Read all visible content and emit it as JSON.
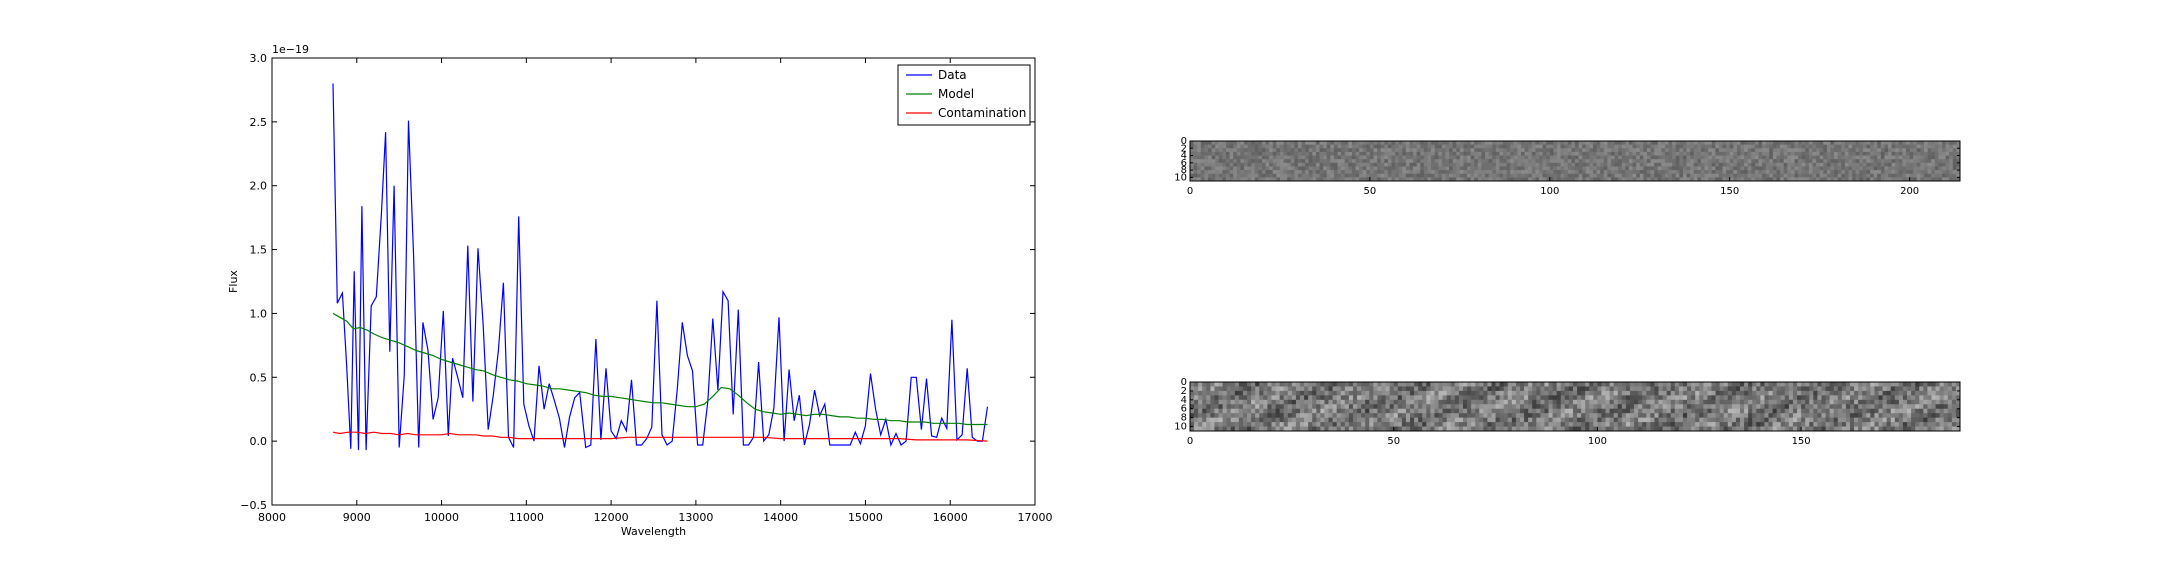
{
  "chart_data": [
    {
      "type": "line",
      "title": "",
      "xlabel": "Wavelength",
      "ylabel": "Flux",
      "y_offset_label": "1e−19",
      "xlim": [
        8000,
        17000
      ],
      "ylim": [
        -0.5,
        3.0
      ],
      "xticks": [
        8000,
        9000,
        10000,
        11000,
        12000,
        13000,
        14000,
        15000,
        16000,
        17000
      ],
      "yticks": [
        -0.5,
        0.0,
        0.5,
        1.0,
        1.5,
        2.0,
        2.5,
        3.0
      ],
      "xtick_labels": [
        "8000",
        "9000",
        "10000",
        "11000",
        "12000",
        "13000",
        "14000",
        "15000",
        "16000",
        "17000"
      ],
      "ytick_labels": [
        "−0.5",
        "0.0",
        "0.5",
        "1.0",
        "1.5",
        "2.0",
        "2.5",
        "3.0"
      ],
      "grid": false,
      "legend_position": "top-right",
      "series": [
        {
          "name": "Data",
          "color": "#0000ff",
          "x": [
            8720,
            8770,
            8830,
            8880,
            8930,
            8970,
            9020,
            9060,
            9110,
            9170,
            9230,
            9290,
            9340,
            9390,
            9440,
            9500,
            9560,
            9610,
            9670,
            9730,
            9780,
            9840,
            9900,
            9960,
            10020,
            10080,
            10130,
            10190,
            10250,
            10310,
            10370,
            10430,
            10490,
            10550,
            10610,
            10670,
            10730,
            10790,
            10850,
            10910,
            10970,
            11030,
            11090,
            11150,
            11210,
            11270,
            11330,
            11390,
            11450,
            11510,
            11570,
            11630,
            11700,
            11760,
            11820,
            11880,
            11940,
            12000,
            12060,
            12120,
            12180,
            12240,
            12300,
            12360,
            12420,
            12480,
            12540,
            12600,
            12660,
            12720,
            12780,
            12840,
            12900,
            12960,
            13020,
            13080,
            13140,
            13200,
            13260,
            13320,
            13380,
            13440,
            13500,
            13560,
            13620,
            13680,
            13740,
            13800,
            13860,
            13920,
            13980,
            14040,
            14100,
            14160,
            14220,
            14280,
            14340,
            14400,
            14460,
            14520,
            14580,
            14640,
            14700,
            14760,
            14820,
            14880,
            14940,
            15000,
            15060,
            15120,
            15180,
            15240,
            15300,
            15360,
            15420,
            15480,
            15540,
            15600,
            15660,
            15720,
            15780,
            15840,
            15900,
            15960,
            16020,
            16080,
            16140,
            16200,
            16260,
            16320,
            16380,
            16440
          ],
          "y": [
            2.8,
            1.08,
            1.16,
            0.6,
            -0.06,
            1.33,
            -0.07,
            1.84,
            -0.07,
            1.06,
            1.13,
            1.78,
            2.42,
            0.7,
            2.0,
            -0.05,
            0.52,
            2.51,
            1.45,
            -0.05,
            0.93,
            0.71,
            0.17,
            0.34,
            1.02,
            0.04,
            0.65,
            0.5,
            0.34,
            1.53,
            0.31,
            1.51,
            0.92,
            0.09,
            0.36,
            0.71,
            1.24,
            0.03,
            -0.05,
            1.76,
            0.29,
            0.12,
            0.0,
            0.59,
            0.25,
            0.45,
            0.32,
            0.18,
            -0.05,
            0.19,
            0.34,
            0.38,
            -0.05,
            -0.03,
            0.8,
            0.01,
            0.57,
            0.08,
            0.02,
            0.16,
            0.08,
            0.48,
            -0.03,
            -0.03,
            0.02,
            0.11,
            1.1,
            0.05,
            -0.03,
            0.0,
            0.4,
            0.93,
            0.67,
            0.55,
            -0.03,
            -0.03,
            0.31,
            0.96,
            0.4,
            1.17,
            1.1,
            0.21,
            1.03,
            -0.03,
            -0.03,
            0.03,
            0.62,
            0.0,
            0.05,
            0.26,
            0.97,
            0.0,
            0.56,
            0.16,
            0.36,
            -0.03,
            0.13,
            0.4,
            0.2,
            0.29,
            -0.03,
            -0.03,
            -0.03,
            -0.03,
            -0.03,
            0.07,
            -0.02,
            0.12,
            0.53,
            0.25,
            0.05,
            0.17,
            -0.03,
            0.06,
            -0.03,
            0.0,
            0.5,
            0.5,
            0.09,
            0.49,
            0.04,
            0.03,
            0.18,
            0.1,
            0.95,
            0.01,
            0.05,
            0.57,
            0.03,
            0.0,
            0.0,
            0.27
          ]
        },
        {
          "name": "Model",
          "color": "#008000",
          "x": [
            8720,
            8800,
            8880,
            8960,
            9040,
            9120,
            9200,
            9300,
            9400,
            9500,
            9600,
            9700,
            9800,
            9900,
            10000,
            10100,
            10200,
            10300,
            10400,
            10500,
            10600,
            10700,
            10800,
            10900,
            11000,
            11100,
            11200,
            11300,
            11400,
            11500,
            11600,
            11700,
            11800,
            11900,
            12000,
            12100,
            12200,
            12300,
            12400,
            12500,
            12600,
            12700,
            12800,
            12900,
            13000,
            13100,
            13200,
            13300,
            13400,
            13500,
            13600,
            13700,
            13800,
            13900,
            14000,
            14100,
            14200,
            14300,
            14400,
            14500,
            14600,
            14700,
            14800,
            14900,
            15000,
            15100,
            15200,
            15300,
            15400,
            15500,
            15600,
            15700,
            15800,
            15900,
            16000,
            16100,
            16200,
            16300,
            16440
          ],
          "y": [
            1.0,
            0.97,
            0.94,
            0.88,
            0.89,
            0.87,
            0.84,
            0.81,
            0.79,
            0.77,
            0.74,
            0.71,
            0.69,
            0.67,
            0.64,
            0.62,
            0.6,
            0.58,
            0.56,
            0.55,
            0.52,
            0.5,
            0.48,
            0.47,
            0.45,
            0.44,
            0.43,
            0.41,
            0.41,
            0.4,
            0.39,
            0.38,
            0.36,
            0.35,
            0.35,
            0.34,
            0.33,
            0.32,
            0.31,
            0.3,
            0.3,
            0.29,
            0.28,
            0.27,
            0.27,
            0.29,
            0.35,
            0.42,
            0.41,
            0.36,
            0.3,
            0.25,
            0.23,
            0.22,
            0.21,
            0.22,
            0.21,
            0.2,
            0.21,
            0.21,
            0.2,
            0.19,
            0.19,
            0.18,
            0.18,
            0.17,
            0.17,
            0.16,
            0.16,
            0.15,
            0.15,
            0.15,
            0.14,
            0.14,
            0.14,
            0.14,
            0.13,
            0.13,
            0.13
          ]
        },
        {
          "name": "Contamination",
          "color": "#ff0000",
          "x": [
            8720,
            8800,
            8900,
            9000,
            9100,
            9200,
            9300,
            9400,
            9500,
            9600,
            9700,
            9800,
            9900,
            10000,
            10100,
            10200,
            10300,
            10400,
            10500,
            10600,
            10700,
            10800,
            10900,
            11000,
            11200,
            11400,
            11600,
            11800,
            12000,
            12200,
            12400,
            12600,
            12800,
            13000,
            13200,
            13400,
            13600,
            13800,
            14000,
            14200,
            14400,
            14600,
            14800,
            15000,
            15200,
            15400,
            15600,
            15800,
            16000,
            16200,
            16440
          ],
          "y": [
            0.07,
            0.06,
            0.07,
            0.07,
            0.06,
            0.07,
            0.06,
            0.06,
            0.05,
            0.06,
            0.05,
            0.05,
            0.05,
            0.05,
            0.06,
            0.05,
            0.05,
            0.05,
            0.04,
            0.04,
            0.03,
            0.03,
            0.02,
            0.02,
            0.02,
            0.02,
            0.02,
            0.02,
            0.02,
            0.03,
            0.03,
            0.03,
            0.03,
            0.03,
            0.03,
            0.03,
            0.03,
            0.03,
            0.02,
            0.02,
            0.02,
            0.02,
            0.02,
            0.02,
            0.02,
            0.02,
            0.01,
            0.01,
            0.01,
            0.01,
            0.0
          ]
        }
      ]
    },
    {
      "type": "heatmap",
      "title": "",
      "colormap": "gray",
      "xlim": [
        0,
        214
      ],
      "ylim": [
        11,
        0
      ],
      "xticks": [
        0,
        50,
        100,
        150,
        200
      ],
      "yticks": [
        0,
        2,
        4,
        6,
        8,
        10
      ],
      "xtick_labels": [
        "0",
        "50",
        "100",
        "150",
        "200"
      ],
      "ytick_labels": [
        "0",
        "2",
        "4",
        "6",
        "8",
        "10"
      ],
      "contrast": "low"
    },
    {
      "type": "heatmap",
      "title": "",
      "colormap": "gray",
      "xlim": [
        0,
        189
      ],
      "ylim": [
        11,
        0
      ],
      "xticks": [
        0,
        50,
        100,
        150
      ],
      "yticks": [
        0,
        2,
        4,
        6,
        8,
        10
      ],
      "xtick_labels": [
        "0",
        "50",
        "100",
        "150"
      ],
      "ytick_labels": [
        "0",
        "2",
        "4",
        "6",
        "8",
        "10"
      ],
      "contrast": "high"
    }
  ]
}
